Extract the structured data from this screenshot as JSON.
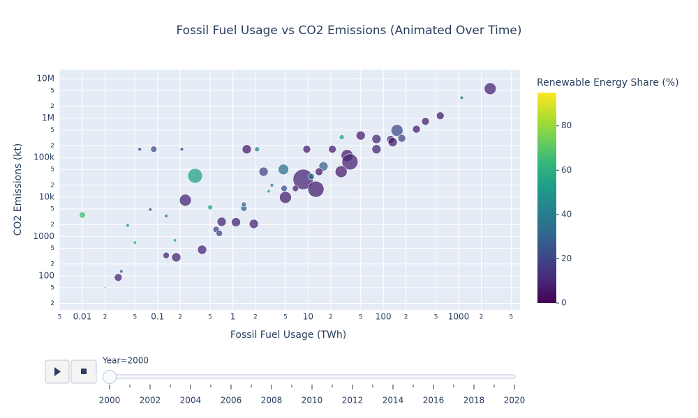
{
  "chart_data": {
    "type": "scatter",
    "title": "Fossil Fuel Usage vs CO2 Emissions (Animated Over Time)",
    "x_label": "Fossil Fuel Usage (TWh)",
    "y_label": "CO2 Emissions (kt)",
    "xscale": "log",
    "yscale": "log",
    "grid": true,
    "xlim": [
      0.00484,
      6546
    ],
    "ylim": [
      13.6,
      17000000
    ],
    "xticks": [
      {
        "value": 0.005,
        "label": "5"
      },
      0.01,
      {
        "value": 0.02,
        "label": "2"
      },
      {
        "value": 0.05,
        "label": "5"
      },
      0.1,
      {
        "value": 0.2,
        "label": "2"
      },
      {
        "value": 0.5,
        "label": "5"
      },
      1,
      {
        "value": 2,
        "label": "2"
      },
      {
        "value": 5,
        "label": "5"
      },
      10,
      {
        "value": 20,
        "label": "2"
      },
      {
        "value": 50,
        "label": "5"
      },
      100,
      {
        "value": 200,
        "label": "2"
      },
      {
        "value": 500,
        "label": "5"
      },
      1000,
      {
        "value": 2000,
        "label": "2"
      },
      {
        "value": 5000,
        "label": "5"
      }
    ],
    "yticks": [
      {
        "value": 20,
        "label": "2"
      },
      {
        "value": 50,
        "label": "5"
      },
      100,
      {
        "value": 200,
        "label": "2"
      },
      {
        "value": 500,
        "label": "5"
      },
      1000,
      {
        "value": 2000,
        "label": "2"
      },
      {
        "value": 5000,
        "label": "5"
      },
      {
        "value": 10000,
        "label": "10k"
      },
      {
        "value": 20000,
        "label": "2"
      },
      {
        "value": 50000,
        "label": "5"
      },
      {
        "value": 100000,
        "label": "100k"
      },
      {
        "value": 200000,
        "label": "2"
      },
      {
        "value": 500000,
        "label": "5"
      },
      {
        "value": 1000000,
        "label": "1M"
      },
      {
        "value": 2000000,
        "label": "2"
      },
      {
        "value": 5000000,
        "label": "5"
      },
      {
        "value": 10000000,
        "label": "10M"
      }
    ],
    "colorscale": [
      "#440154",
      "#482878",
      "#3e4989",
      "#31688e",
      "#26828e",
      "#1f9e89",
      "#35b779",
      "#6ece58",
      "#b5de2b",
      "#fde725"
    ],
    "colorbar": {
      "title": "Renewable Energy Share (%)",
      "range": [
        0,
        95
      ],
      "ticks": [
        0,
        20,
        40,
        60,
        80
      ]
    },
    "series": [
      {
        "x": [
          2630,
          1100,
          570,
          363,
          275,
          152,
          125,
          176,
          133,
          81,
          81,
          50,
          28,
          21,
          33,
          36,
          27.5,
          16,
          14,
          8.6,
          12.7,
          9.6,
          4.7,
          2.56,
          1.53,
          2.1,
          5,
          4.8,
          6.8,
          0.315,
          0.234,
          0.089,
          0.058,
          0.21,
          0.01,
          0.03,
          0.177,
          0.13,
          0.39,
          0.71,
          0.6,
          0.66,
          1.9,
          1.1,
          1.4,
          1.4,
          0.08,
          0.04,
          0.033,
          0.02,
          0.05,
          0.13,
          0.17,
          3,
          0.5,
          3.3,
          11
        ],
        "y": [
          5600000,
          3300000,
          1150000,
          830000,
          525000,
          490000,
          290000,
          310000,
          247000,
          296000,
          163000,
          363000,
          330000,
          163000,
          113000,
          78000,
          44000,
          60000,
          44000,
          28000,
          15800,
          163000,
          50000,
          44000,
          163000,
          163000,
          9800,
          16500,
          16500,
          34500,
          8300,
          163000,
          163000,
          163000,
          3500,
          91,
          295,
          330,
          460,
          2350,
          1500,
          1200,
          2080,
          2300,
          5200,
          6500,
          4800,
          1900,
          130,
          50,
          700,
          3300,
          800,
          14000,
          5500,
          20000,
          33000
        ],
        "size": [
          64,
          4,
          25,
          25,
          25,
          64,
          25,
          25,
          36,
          36,
          36,
          36,
          9,
          25,
          64,
          121,
          64,
          36,
          25,
          196,
          121,
          25,
          49,
          36,
          36,
          9,
          64,
          16,
          16,
          100,
          64,
          16,
          4,
          4,
          16,
          25,
          36,
          16,
          36,
          36,
          16,
          16,
          36,
          36,
          16,
          9,
          4,
          4,
          4,
          1,
          4,
          4,
          4,
          4,
          9,
          4,
          16
        ],
        "renewable": [
          10,
          35,
          8,
          8,
          8,
          22,
          10,
          20,
          8,
          10,
          10,
          8,
          55,
          8,
          8,
          10,
          8,
          30,
          8,
          10,
          8,
          8,
          35,
          20,
          8,
          45,
          8,
          25,
          10,
          55,
          10,
          25,
          20,
          20,
          65,
          10,
          10,
          10,
          10,
          10,
          20,
          20,
          10,
          10,
          30,
          35,
          30,
          45,
          30,
          70,
          60,
          35,
          60,
          60,
          55,
          35,
          35
        ]
      }
    ],
    "slider": {
      "label": "Year=2000",
      "value": 2000,
      "range": [
        2000,
        2020
      ],
      "steps": [
        2000,
        2001,
        2002,
        2003,
        2004,
        2005,
        2006,
        2007,
        2008,
        2009,
        2010,
        2011,
        2012,
        2013,
        2014,
        2015,
        2016,
        2017,
        2018,
        2019,
        2020
      ],
      "tick_labels": [
        2000,
        2002,
        2004,
        2006,
        2008,
        2010,
        2012,
        2014,
        2016,
        2018,
        2020
      ]
    }
  }
}
